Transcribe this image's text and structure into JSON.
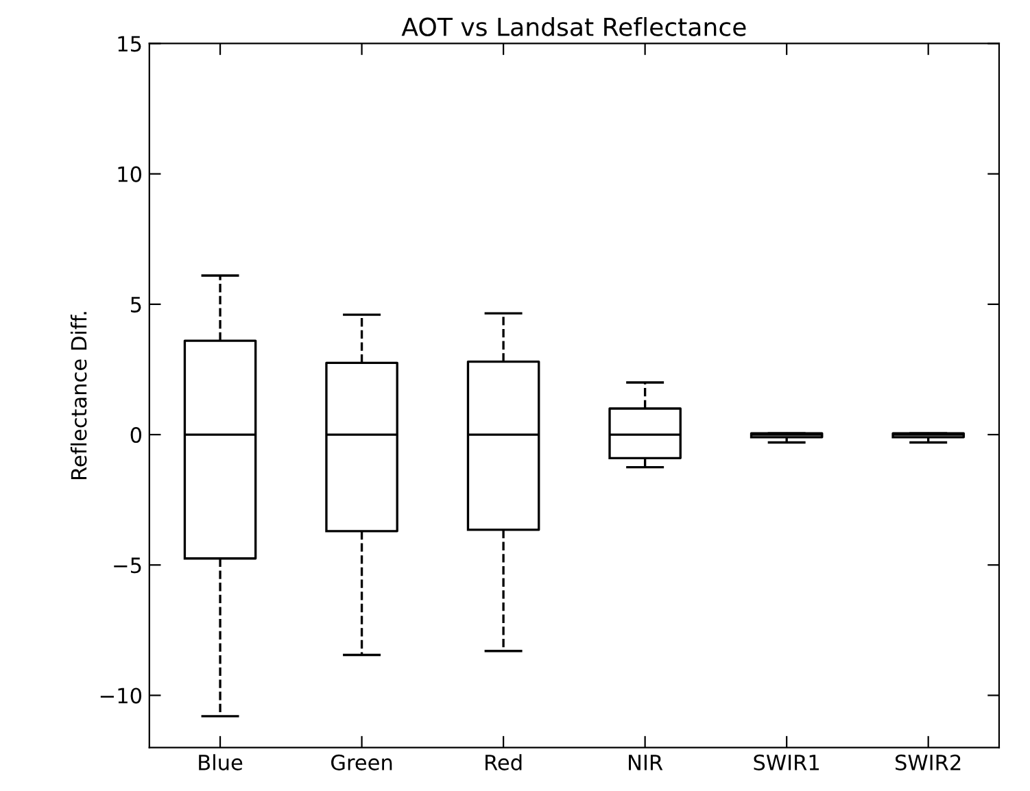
{
  "chart_data": {
    "type": "box",
    "title": "AOT vs Landsat Reflectance",
    "ylabel": "Reflectance Diff.",
    "categories": [
      "Blue",
      "Green",
      "Red",
      "NIR",
      "SWIR1",
      "SWIR2"
    ],
    "boxes": [
      {
        "low": -10.8,
        "q1": -4.75,
        "median": 0,
        "q3": 3.6,
        "high": 6.1
      },
      {
        "low": -8.45,
        "q1": -3.7,
        "median": 0,
        "q3": 2.75,
        "high": 4.6
      },
      {
        "low": -8.3,
        "q1": -3.65,
        "median": 0,
        "q3": 2.8,
        "high": 4.65
      },
      {
        "low": -1.25,
        "q1": -0.9,
        "median": 0,
        "q3": 1.0,
        "high": 2.0
      },
      {
        "low": -0.3,
        "q1": -0.1,
        "median": 0,
        "q3": 0.05,
        "high": 0.05
      },
      {
        "low": -0.3,
        "q1": -0.1,
        "median": 0,
        "q3": 0.05,
        "high": 0.05
      }
    ],
    "color": "#000000",
    "ylim": [
      -12,
      15
    ],
    "yticks": [
      {
        "value": -10,
        "label": "−10"
      },
      {
        "value": -5,
        "label": "−5"
      },
      0,
      5,
      10,
      15
    ],
    "grid": false
  }
}
